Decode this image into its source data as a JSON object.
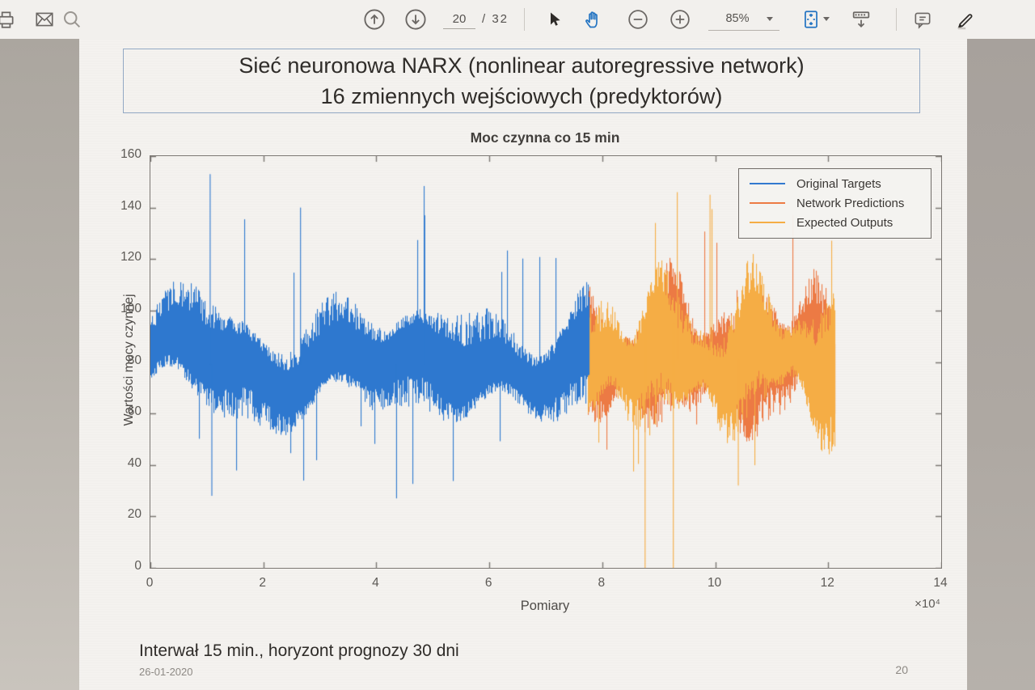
{
  "toolbar": {
    "page_current": "20",
    "page_total_display": "/ 32",
    "zoom_level": "85%"
  },
  "slide": {
    "title_line1": "Sieć neuronowa NARX (nonlinear autoregressive network)",
    "title_line2": "16 zmiennych wejściowych (predyktorów)",
    "footnote": "Interwał 15 min., horyzont prognozy 30 dni",
    "date": "26-01-2020",
    "page_number": "20"
  },
  "chart_data": {
    "type": "line",
    "title": "Moc czynna co 15 min",
    "xlabel": "Pomiary",
    "ylabel": "Wartości mocy czynnej",
    "x_scale_label": "×10⁴",
    "xlim": [
      0,
      140000
    ],
    "ylim": [
      0,
      160
    ],
    "x_ticks": [
      0,
      2,
      4,
      6,
      8,
      10,
      12,
      14
    ],
    "x_tick_unit": 10000,
    "y_ticks": [
      0,
      20,
      40,
      60,
      80,
      100,
      120,
      140,
      160
    ],
    "grid": false,
    "legend_position": "northeast",
    "legend": [
      {
        "label": "Original Targets",
        "color": "#3279cf"
      },
      {
        "label": "Network Predictions",
        "color": "#ec7a44"
      },
      {
        "label": "Expected Outputs",
        "color": "#f5ad45"
      }
    ],
    "series": [
      {
        "name": "Network Predictions",
        "color": "#ec7a44",
        "x_start": 77500,
        "x_end": 121000,
        "mean": 81,
        "typical_low": 52,
        "typical_high": 118,
        "spike_max": 140,
        "spike_min": 38,
        "seed": 21,
        "forced_points": []
      },
      {
        "name": "Expected Outputs",
        "color": "#f5ad45",
        "x_start": 77500,
        "x_end": 121000,
        "mean": 81,
        "typical_low": 52,
        "typical_high": 118,
        "spike_max": 146,
        "spike_min": 30,
        "seed": 5,
        "dropouts_x": [
          87500,
          92500
        ],
        "forced_points": [
          {
            "x": 93200,
            "v": 146
          },
          {
            "x": 104000,
            "v": 32
          },
          {
            "x": 99000,
            "v": 145
          }
        ]
      },
      {
        "name": "Original Targets",
        "color": "#2e78cf",
        "x_start": 0,
        "x_end": 77500,
        "mean": 79,
        "typical_low": 55,
        "typical_high": 112,
        "spike_max": 153,
        "spike_min": 27,
        "seed": 7,
        "forced_points": [
          {
            "x": 10500,
            "v": 153
          },
          {
            "x": 10800,
            "v": 28
          },
          {
            "x": 43500,
            "v": 27
          },
          {
            "x": 48500,
            "v": 137
          },
          {
            "x": 26500,
            "v": 140
          },
          {
            "x": 89000,
            "v": 0
          }
        ]
      }
    ]
  }
}
